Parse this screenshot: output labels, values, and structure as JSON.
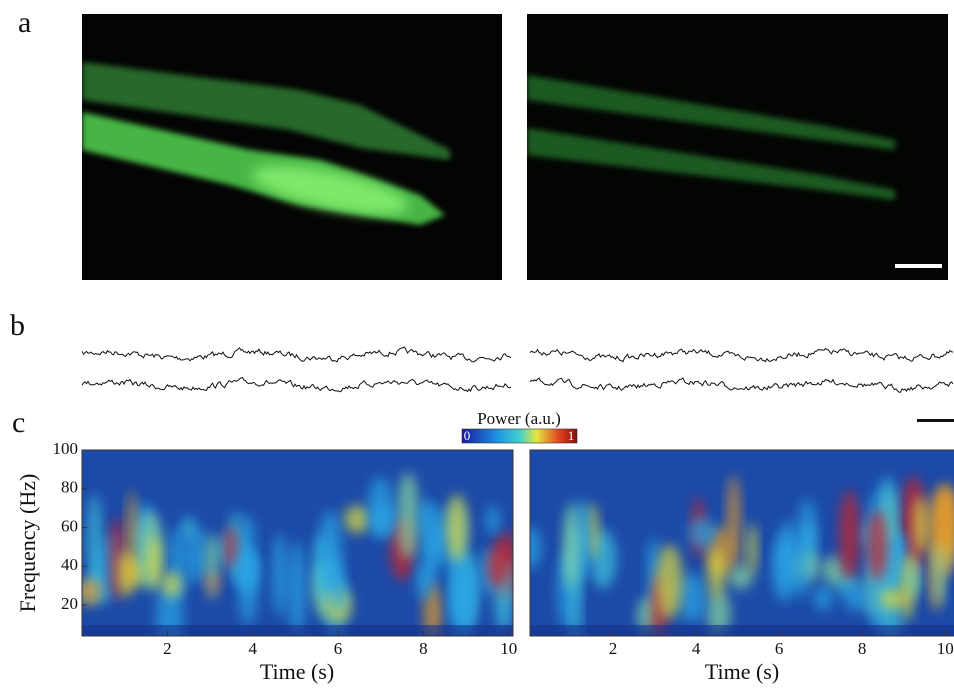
{
  "panel_labels": [
    "a",
    "b",
    "c"
  ],
  "colorbar": {
    "title": "Power (a.u.)",
    "min": 0,
    "max": 1
  },
  "spectrograms": [
    {
      "y_label": "Frequency (Hz)",
      "x_label": "Time (s)",
      "xlim": [
        0,
        10.1
      ],
      "ylim": [
        4,
        100
      ],
      "xticks": [
        2,
        4,
        6,
        8,
        10
      ],
      "yticks": [
        20,
        40,
        60,
        80,
        100
      ]
    },
    {
      "x_label": "Time (s)",
      "xlim": [
        0,
        10.2
      ],
      "ylim": [
        4,
        100
      ],
      "xticks": [
        2,
        4,
        6,
        8,
        10
      ]
    }
  ]
}
